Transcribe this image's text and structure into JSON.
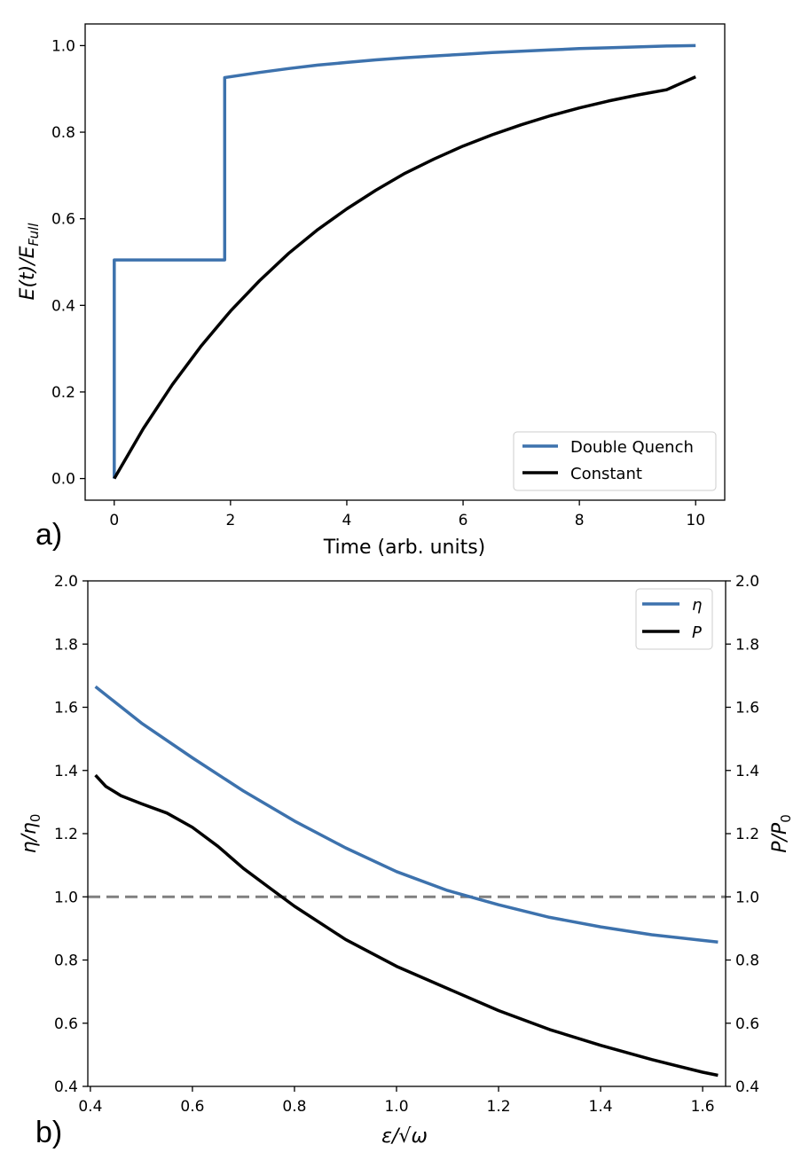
{
  "chart_data": [
    {
      "panel": "a)",
      "type": "line",
      "title": "",
      "xlabel": "Time (arb. units)",
      "ylabel": "E(t)/E",
      "ylabel_subscript": "Full",
      "xlim": [
        -0.5,
        10.5
      ],
      "ylim": [
        -0.05,
        1.05
      ],
      "xticks": [
        0,
        2,
        4,
        6,
        8,
        10
      ],
      "xtick_labels": [
        "0",
        "2",
        "4",
        "6",
        "8",
        "10"
      ],
      "yticks": [
        0.0,
        0.2,
        0.4,
        0.6,
        0.8,
        1.0
      ],
      "ytick_labels": [
        "0.0",
        "0.2",
        "0.4",
        "0.6",
        "0.8",
        "1.0"
      ],
      "legend_position": "bottom-right",
      "series": [
        {
          "name": "Double Quench",
          "color": "#3d72ad",
          "x": [
            0,
            0,
            1.9,
            1.9,
            2.5,
            3,
            3.5,
            4,
            4.5,
            5,
            5.5,
            6,
            6.5,
            7,
            7.5,
            8,
            8.5,
            9,
            9.5,
            10
          ],
          "y": [
            0,
            0.505,
            0.505,
            0.926,
            0.938,
            0.947,
            0.955,
            0.961,
            0.967,
            0.972,
            0.976,
            0.98,
            0.984,
            0.987,
            0.99,
            0.993,
            0.995,
            0.997,
            0.999,
            1.0
          ]
        },
        {
          "name": "Constant",
          "color": "#000000",
          "x": [
            0,
            0.5,
            1,
            1.5,
            2,
            2.5,
            3,
            3.5,
            4,
            4.5,
            5,
            5.5,
            6,
            6.5,
            7,
            7.5,
            8,
            8.5,
            9,
            9.5,
            10
          ],
          "y": [
            0,
            0.115,
            0.217,
            0.307,
            0.387,
            0.457,
            0.52,
            0.575,
            0.623,
            0.666,
            0.705,
            0.738,
            0.768,
            0.794,
            0.817,
            0.838,
            0.856,
            0.872,
            0.886,
            0.898,
            0.928
          ]
        }
      ]
    },
    {
      "panel": "b)",
      "type": "line",
      "title": "",
      "xlabel": "ε/√ω",
      "ylabel": "η/η",
      "ylabel_subscript": "0",
      "y2label": "P/P",
      "y2label_subscript": "0",
      "xlim": [
        0.395,
        1.645
      ],
      "ylim": [
        0.4,
        2.0
      ],
      "y2lim": [
        0.4,
        2.0
      ],
      "xticks": [
        0.4,
        0.6,
        0.8,
        1.0,
        1.2,
        1.4,
        1.6
      ],
      "xtick_labels": [
        "0.4",
        "0.6",
        "0.8",
        "1.0",
        "1.2",
        "1.4",
        "1.6"
      ],
      "yticks": [
        0.4,
        0.6,
        0.8,
        1.0,
        1.2,
        1.4,
        1.6,
        1.8,
        2.0
      ],
      "ytick_labels": [
        "0.4",
        "0.6",
        "0.8",
        "1.0",
        "1.2",
        "1.4",
        "1.6",
        "1.8",
        "2.0"
      ],
      "legend_position": "top-right",
      "reference_line": {
        "y": 1.0,
        "color": "#808080",
        "style": "dashed"
      },
      "series": [
        {
          "name": "η",
          "color": "#3d72ad",
          "x": [
            0.41,
            0.5,
            0.6,
            0.7,
            0.8,
            0.9,
            1.0,
            1.1,
            1.2,
            1.3,
            1.4,
            1.5,
            1.6,
            1.63
          ],
          "y": [
            1.665,
            1.55,
            1.44,
            1.335,
            1.24,
            1.155,
            1.08,
            1.02,
            0.975,
            0.935,
            0.905,
            0.88,
            0.862,
            0.857
          ]
        },
        {
          "name": "P",
          "color": "#000000",
          "x": [
            0.41,
            0.43,
            0.46,
            0.5,
            0.55,
            0.6,
            0.65,
            0.7,
            0.75,
            0.8,
            0.9,
            1.0,
            1.1,
            1.2,
            1.3,
            1.4,
            1.5,
            1.6,
            1.63
          ],
          "y": [
            1.385,
            1.35,
            1.32,
            1.295,
            1.265,
            1.22,
            1.16,
            1.09,
            1.03,
            0.97,
            0.865,
            0.78,
            0.71,
            0.64,
            0.58,
            0.53,
            0.485,
            0.445,
            0.435
          ]
        }
      ]
    }
  ]
}
